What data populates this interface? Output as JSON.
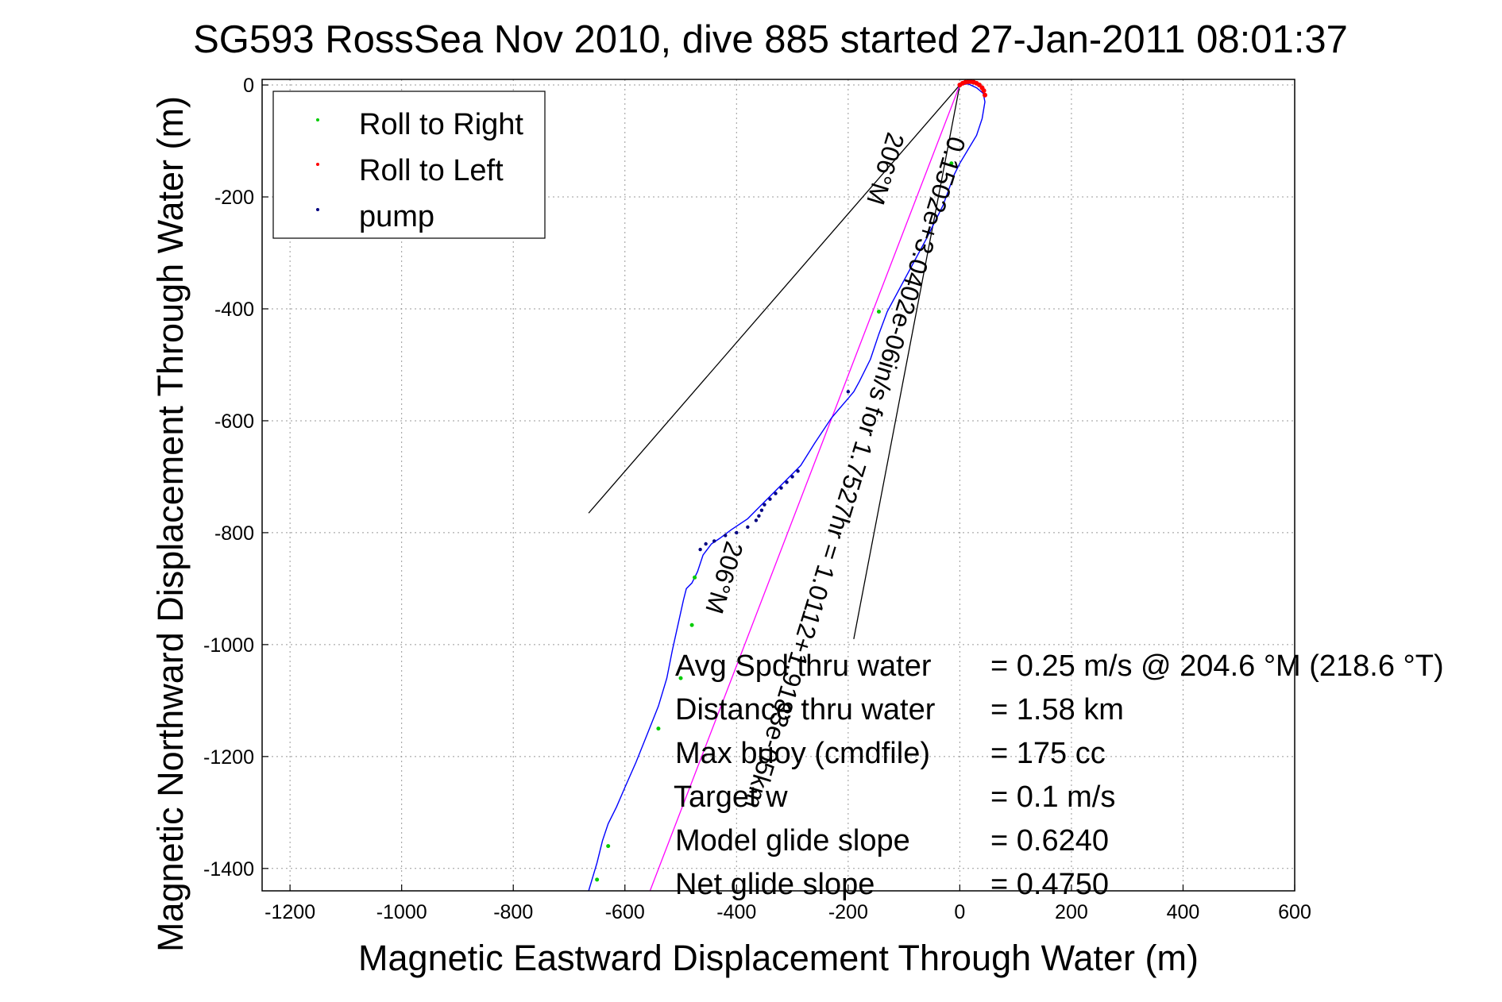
{
  "chart_data": {
    "type": "line",
    "title": "SG593 RossSea Nov 2010, dive 885 started 27-Jan-2011 08:01:37",
    "title_overlap_text": "SG5",
    "title_overlap_text2": "3",
    "xlabel": "Magnetic Eastward Displacement Through Water (m)",
    "ylabel": "Magnetic Northward Displacement Through Water (m)",
    "xlim": [
      -1250,
      600
    ],
    "ylim": [
      -1440,
      10
    ],
    "xticks": [
      -1200,
      -1000,
      -800,
      -600,
      -400,
      -200,
      0,
      200,
      400,
      600
    ],
    "yticks": [
      0,
      -200,
      -400,
      -600,
      -800,
      -1000,
      -1200,
      -1400
    ],
    "xtick_labels": [
      "-1200",
      "-1000",
      "-800",
      "-600",
      "-400",
      "-200",
      "0",
      "200",
      "400",
      "600"
    ],
    "ytick_labels": [
      "0",
      "-200",
      "-400",
      "-600",
      "-800",
      "-1000",
      "-1200",
      "-1400"
    ],
    "grid": true,
    "legend_position": "top-left",
    "legend": [
      {
        "label": "Roll to Right",
        "color": "#00cc00"
      },
      {
        "label": "Roll to Left",
        "color": "#ff0000"
      },
      {
        "label": "pump",
        "color": "#000080"
      }
    ],
    "series": [
      {
        "name": "track",
        "color": "#0000ff",
        "x": [
          0,
          15,
          30,
          42,
          45,
          40,
          30,
          15,
          0,
          -10,
          -30,
          -60,
          -95,
          -130,
          -145,
          -160,
          -180,
          -190,
          -200,
          -230,
          -260,
          -285,
          -300,
          -320,
          -350,
          -380,
          -410,
          -430,
          -445,
          -460,
          -470,
          -480,
          -490,
          -495,
          -505,
          -515,
          -525,
          -540,
          -560,
          -580,
          -600,
          -615,
          -630,
          -640,
          -650,
          -665
        ],
        "y": [
          0,
          2,
          -5,
          -15,
          -30,
          -60,
          -90,
          -115,
          -140,
          -160,
          -215,
          -275,
          -340,
          -405,
          -445,
          -490,
          -530,
          -548,
          -560,
          -595,
          -640,
          -680,
          -695,
          -715,
          -745,
          -775,
          -795,
          -810,
          -820,
          -840,
          -870,
          -890,
          -900,
          -920,
          -965,
          -1010,
          -1060,
          -1110,
          -1160,
          -1210,
          -1255,
          -1290,
          -1320,
          -1350,
          -1390,
          -1440
        ]
      }
    ],
    "roll_right_points": {
      "color": "#00cc00",
      "x": [
        -15,
        -145,
        -475,
        -480,
        -500,
        -540,
        -630,
        -650
      ],
      "y": [
        -140,
        -405,
        -880,
        -965,
        -1060,
        -1150,
        -1360,
        -1420
      ]
    },
    "roll_left_points": {
      "color": "#ff0000",
      "x": [
        0,
        5,
        10,
        15,
        20,
        25,
        30,
        35,
        40,
        43,
        45
      ],
      "y": [
        0,
        3,
        5,
        6,
        6,
        5,
        3,
        0,
        -5,
        -10,
        -18
      ]
    },
    "pump_points": {
      "color": "#000080",
      "x": [
        -200,
        -290,
        -300,
        -310,
        -320,
        -330,
        -340,
        -350,
        -355,
        -360,
        -365,
        -380,
        -400,
        -420,
        -440,
        -455,
        -465
      ],
      "y": [
        -548,
        -690,
        -700,
        -710,
        -720,
        -730,
        -740,
        -750,
        -760,
        -770,
        -778,
        -790,
        -800,
        -805,
        -815,
        -820,
        -830
      ]
    },
    "line_to_target": {
      "color": "#ff00ff",
      "x": [
        0,
        -555
      ],
      "y": [
        0,
        -1440
      ]
    },
    "wedge_line_left": {
      "color": "#000000",
      "x": [
        0,
        -665
      ],
      "y": [
        0,
        -765
      ]
    },
    "wedge_line_right": {
      "color": "#000000",
      "x": [
        0,
        -190
      ],
      "y": [
        0,
        -990
      ]
    },
    "rotated_label": "0.1502e+3.0402e-06in/s for 1.7527hr = 1.0112+1.9183e-05km",
    "rotated_label_sub": "206°M",
    "rotated_label_sub2": "206°M",
    "stats": [
      {
        "label": "Avg Spd thru water",
        "value": "=  0.25 m/s @ 204.6 °M (218.6 °T)"
      },
      {
        "label": "Distance thru water",
        "value": "=  1.58 km"
      },
      {
        "label": "Max buoy (cmdfile)",
        "value": "= 175 cc"
      },
      {
        "label": "Target w",
        "value": "= 0.1 m/s"
      },
      {
        "label": "Model glide slope",
        "value": "= 0.6240"
      },
      {
        "label": "Net glide slope",
        "value": "= 0.4750"
      }
    ]
  }
}
